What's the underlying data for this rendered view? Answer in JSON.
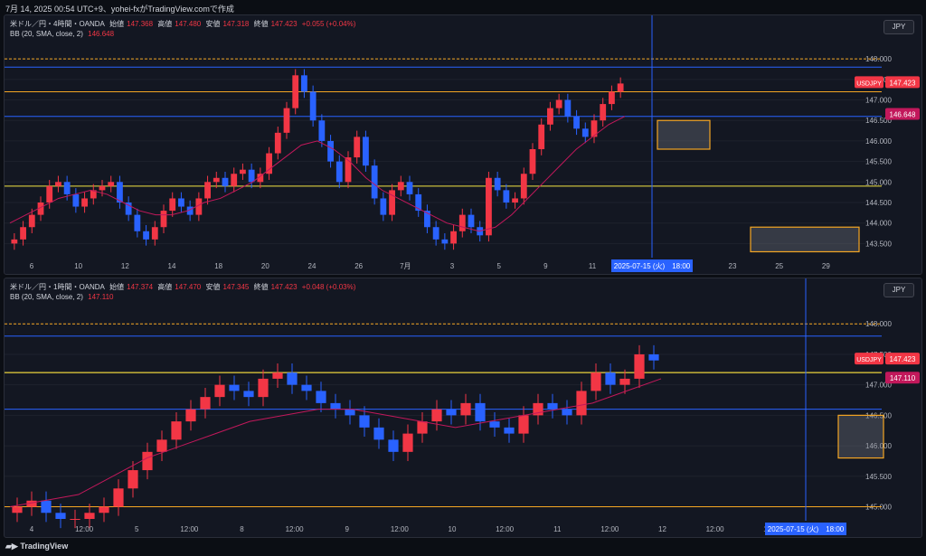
{
  "header": {
    "title": "7月 14, 2025 00:54 UTC+9、yohei-fxがTradingView.comで作成"
  },
  "footer": {
    "brand": "TradingView"
  },
  "colors": {
    "bg": "#131722",
    "up": "#f23645",
    "down": "#2962ff",
    "bb": "#c2185b",
    "orange": "#f5a623",
    "blue_line": "#2962ff",
    "yellow": "#f5e642",
    "green": "#4caf50"
  },
  "panes": [
    {
      "legend": {
        "symbol": "米ドル／円・4時間・OANDA",
        "open_label": "始値",
        "open": "147.368",
        "high_label": "高値",
        "high": "147.480",
        "low_label": "安値",
        "low": "147.318",
        "close_label": "終値",
        "close": "147.423",
        "change": "+0.055 (+0.04%)"
      },
      "bb_legend": {
        "name": "BB (20, SMA, close, 2)",
        "value": "146.648"
      },
      "currency_badge": "JPY",
      "price_labels": [
        "148.000",
        "147.500",
        "147.000",
        "146.500",
        "146.000",
        "145.500",
        "145.000",
        "144.500",
        "144.000",
        "143.500"
      ],
      "ylim": [
        143.2,
        148.4
      ],
      "time_labels": [
        "6",
        "10",
        "12",
        "14",
        "18",
        "20",
        "24",
        "26",
        "7月",
        "3",
        "5",
        "9",
        "11",
        "15",
        "19",
        "23",
        "25",
        "29"
      ],
      "cursor_label": "2025-07-15 (火)　18:00",
      "symbol_tag": "USDJPY",
      "price_tag": "147.423",
      "bb_tag": "146.648"
    },
    {
      "legend": {
        "symbol": "米ドル／円・1時間・OANDA",
        "open_label": "始値",
        "open": "147.374",
        "high_label": "高値",
        "high": "147.470",
        "low_label": "安値",
        "low": "147.345",
        "close_label": "終値",
        "close": "147.423",
        "change": "+0.048 (+0.03%)"
      },
      "bb_legend": {
        "name": "BB (20, SMA, close, 2)",
        "value": "147.110"
      },
      "currency_badge": "JPY",
      "price_labels": [
        "148.000",
        "147.500",
        "147.000",
        "146.500",
        "146.000",
        "145.500",
        "145.000"
      ],
      "ylim": [
        144.8,
        148.3
      ],
      "time_labels": [
        "4",
        "12:00",
        "5",
        "12:00",
        "8",
        "12:00",
        "9",
        "12:00",
        "10",
        "12:00",
        "11",
        "12:00",
        "12",
        "12:00",
        "15",
        "12:00"
      ],
      "cursor_label": "2025-07-15 (火)　18:00",
      "symbol_tag": "USDJPY",
      "price_tag": "147.423",
      "bb_tag": "147.110"
    }
  ],
  "chart_data": [
    {
      "type": "candlestick",
      "title": "米ドル／円・4時間・OANDA",
      "ylim": [
        143.2,
        148.4
      ],
      "close_series": [
        143.6,
        143.9,
        144.2,
        144.5,
        144.9,
        145.0,
        144.7,
        144.4,
        144.6,
        144.8,
        144.9,
        145.0,
        144.5,
        144.2,
        143.8,
        143.6,
        143.9,
        144.3,
        144.6,
        144.4,
        144.2,
        144.6,
        145.0,
        145.1,
        144.9,
        145.2,
        145.3,
        145.0,
        145.2,
        145.7,
        146.2,
        146.8,
        147.6,
        147.2,
        146.5,
        146.0,
        145.5,
        145.0,
        145.6,
        146.1,
        145.4,
        144.6,
        144.2,
        144.8,
        145.0,
        144.7,
        144.3,
        143.9,
        143.6,
        143.5,
        143.8,
        144.2,
        143.9,
        143.7,
        145.1,
        144.8,
        144.5,
        144.6,
        145.2,
        145.8,
        146.4,
        146.8,
        147.0,
        146.6,
        146.3,
        146.1,
        146.5,
        146.9,
        147.2,
        147.4
      ],
      "bb_mid": [
        144.0,
        144.2,
        144.4,
        144.6,
        144.7,
        144.8,
        144.7,
        144.5,
        144.3,
        144.2,
        144.2,
        144.3,
        144.5,
        144.6,
        144.8,
        145.0,
        145.3,
        145.6,
        145.9,
        146.0,
        145.8,
        145.5,
        145.1,
        144.8,
        144.6,
        144.4,
        144.2,
        144.0,
        143.9,
        143.8,
        143.9,
        144.2,
        144.6,
        145.0,
        145.4,
        145.8,
        146.1,
        146.4,
        146.6
      ],
      "support_resistance": {
        "orange_levels": [
          148.0,
          147.2
        ],
        "blue_levels": [
          147.8,
          146.6
        ],
        "yellow_levels": [
          144.9
        ]
      },
      "zones": [
        {
          "from": 145.8,
          "to": 146.5
        },
        {
          "from": 143.3,
          "to": 143.9
        }
      ]
    },
    {
      "type": "candlestick",
      "title": "米ドル／円・1時間・OANDA",
      "ylim": [
        144.8,
        148.3
      ],
      "close_series": [
        145.0,
        145.1,
        144.9,
        144.8,
        144.8,
        144.9,
        145.0,
        145.3,
        145.6,
        145.9,
        146.1,
        146.4,
        146.6,
        146.8,
        147.0,
        146.9,
        146.8,
        147.1,
        147.2,
        147.0,
        146.9,
        146.7,
        146.6,
        146.5,
        146.3,
        146.1,
        145.9,
        146.2,
        146.4,
        146.6,
        146.5,
        146.7,
        146.4,
        146.3,
        146.2,
        146.5,
        146.7,
        146.6,
        146.5,
        146.9,
        147.2,
        147.0,
        147.1,
        147.5,
        147.4
      ],
      "bb_mid": [
        145.0,
        145.1,
        145.2,
        145.5,
        145.8,
        146.0,
        146.2,
        146.4,
        146.5,
        146.6,
        146.6,
        146.5,
        146.4,
        146.3,
        146.4,
        146.5,
        146.6,
        146.7,
        146.9,
        147.1
      ],
      "support_resistance": {
        "orange_levels": [
          148.0,
          147.2,
          145.0
        ],
        "blue_levels": [
          147.8,
          146.6
        ],
        "yellow_levels": [
          147.2
        ]
      },
      "zones": [
        {
          "from": 145.8,
          "to": 146.5
        }
      ]
    }
  ]
}
